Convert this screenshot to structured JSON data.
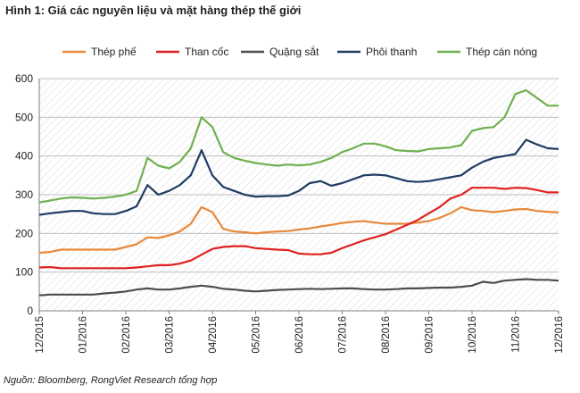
{
  "title": "Hình 1: Giá các nguyên liệu và mặt hàng thép thế giới",
  "source": "Nguồn: Bloomberg, RongViet Research tổng hợp",
  "chart_data": {
    "type": "line",
    "title": "Hình 1: Giá các nguyên liệu và mặt hàng thép thế giới",
    "xlabel": "",
    "ylabel": "",
    "ylim": [
      0,
      600
    ],
    "yticks": [
      0,
      100,
      200,
      300,
      400,
      500,
      600
    ],
    "grid": true,
    "legend_position": "top",
    "x_tick_labels": [
      "12/2015",
      "01/2016",
      "02/2016",
      "03/2016",
      "04/2016",
      "05/2016",
      "06/2016",
      "07/2016",
      "08/2016",
      "09/2016",
      "10/2016",
      "11/2016",
      "12/2016"
    ],
    "x": [
      0,
      0.25,
      0.5,
      0.75,
      1,
      1.25,
      1.5,
      1.75,
      2,
      2.25,
      2.5,
      2.75,
      3,
      3.25,
      3.5,
      3.75,
      4,
      4.25,
      4.5,
      4.75,
      5,
      5.25,
      5.5,
      5.75,
      6,
      6.25,
      6.5,
      6.75,
      7,
      7.25,
      7.5,
      7.75,
      8,
      8.25,
      8.5,
      8.75,
      9,
      9.25,
      9.5,
      9.75,
      10,
      10.25,
      10.5,
      10.75,
      11,
      11.25,
      11.5,
      11.75,
      12
    ],
    "series": [
      {
        "name": "Thép phế",
        "color": "#e8883a",
        "values": [
          150,
          152,
          158,
          158,
          158,
          158,
          158,
          158,
          165,
          172,
          190,
          188,
          195,
          205,
          225,
          268,
          255,
          212,
          205,
          203,
          200,
          203,
          205,
          206,
          210,
          213,
          218,
          222,
          227,
          230,
          232,
          228,
          225,
          225,
          225,
          228,
          232,
          240,
          252,
          268,
          260,
          258,
          255,
          258,
          262,
          263,
          258,
          256,
          254
        ]
      },
      {
        "name": "Than cốc",
        "color": "#e02020",
        "values": [
          112,
          113,
          110,
          110,
          110,
          110,
          110,
          110,
          110,
          112,
          115,
          118,
          118,
          122,
          130,
          145,
          160,
          165,
          167,
          167,
          162,
          160,
          158,
          157,
          148,
          146,
          146,
          150,
          162,
          172,
          182,
          190,
          198,
          210,
          222,
          235,
          252,
          268,
          290,
          300,
          318,
          318,
          318,
          315,
          318,
          317,
          312,
          306,
          306
        ]
      },
      {
        "name": "Quặng sắt",
        "color": "#4d4d4d",
        "values": [
          40,
          42,
          42,
          42,
          42,
          42,
          45,
          47,
          50,
          55,
          58,
          55,
          55,
          58,
          62,
          65,
          62,
          57,
          55,
          52,
          50,
          52,
          54,
          55,
          56,
          57,
          56,
          57,
          58,
          58,
          56,
          55,
          55,
          56,
          58,
          58,
          59,
          60,
          60,
          62,
          65,
          75,
          72,
          78,
          80,
          82,
          80,
          80,
          78
        ]
      },
      {
        "name": "Phôi thanh",
        "color": "#1f3b63",
        "values": [
          248,
          252,
          255,
          258,
          258,
          252,
          250,
          250,
          258,
          270,
          325,
          300,
          310,
          325,
          350,
          415,
          350,
          320,
          310,
          300,
          295,
          296,
          296,
          298,
          310,
          330,
          335,
          323,
          330,
          340,
          350,
          352,
          350,
          343,
          335,
          333,
          335,
          340,
          345,
          350,
          370,
          385,
          395,
          400,
          405,
          442,
          430,
          420,
          418
        ]
      },
      {
        "name": "Thép cán nóng",
        "color": "#6fb050",
        "values": [
          280,
          285,
          290,
          293,
          292,
          290,
          292,
          295,
          300,
          310,
          395,
          375,
          368,
          385,
          420,
          500,
          475,
          410,
          395,
          388,
          382,
          378,
          375,
          378,
          376,
          378,
          385,
          395,
          410,
          420,
          432,
          432,
          425,
          415,
          413,
          412,
          418,
          420,
          422,
          428,
          465,
          472,
          475,
          500,
          560,
          570,
          550,
          530,
          530
        ]
      }
    ]
  }
}
